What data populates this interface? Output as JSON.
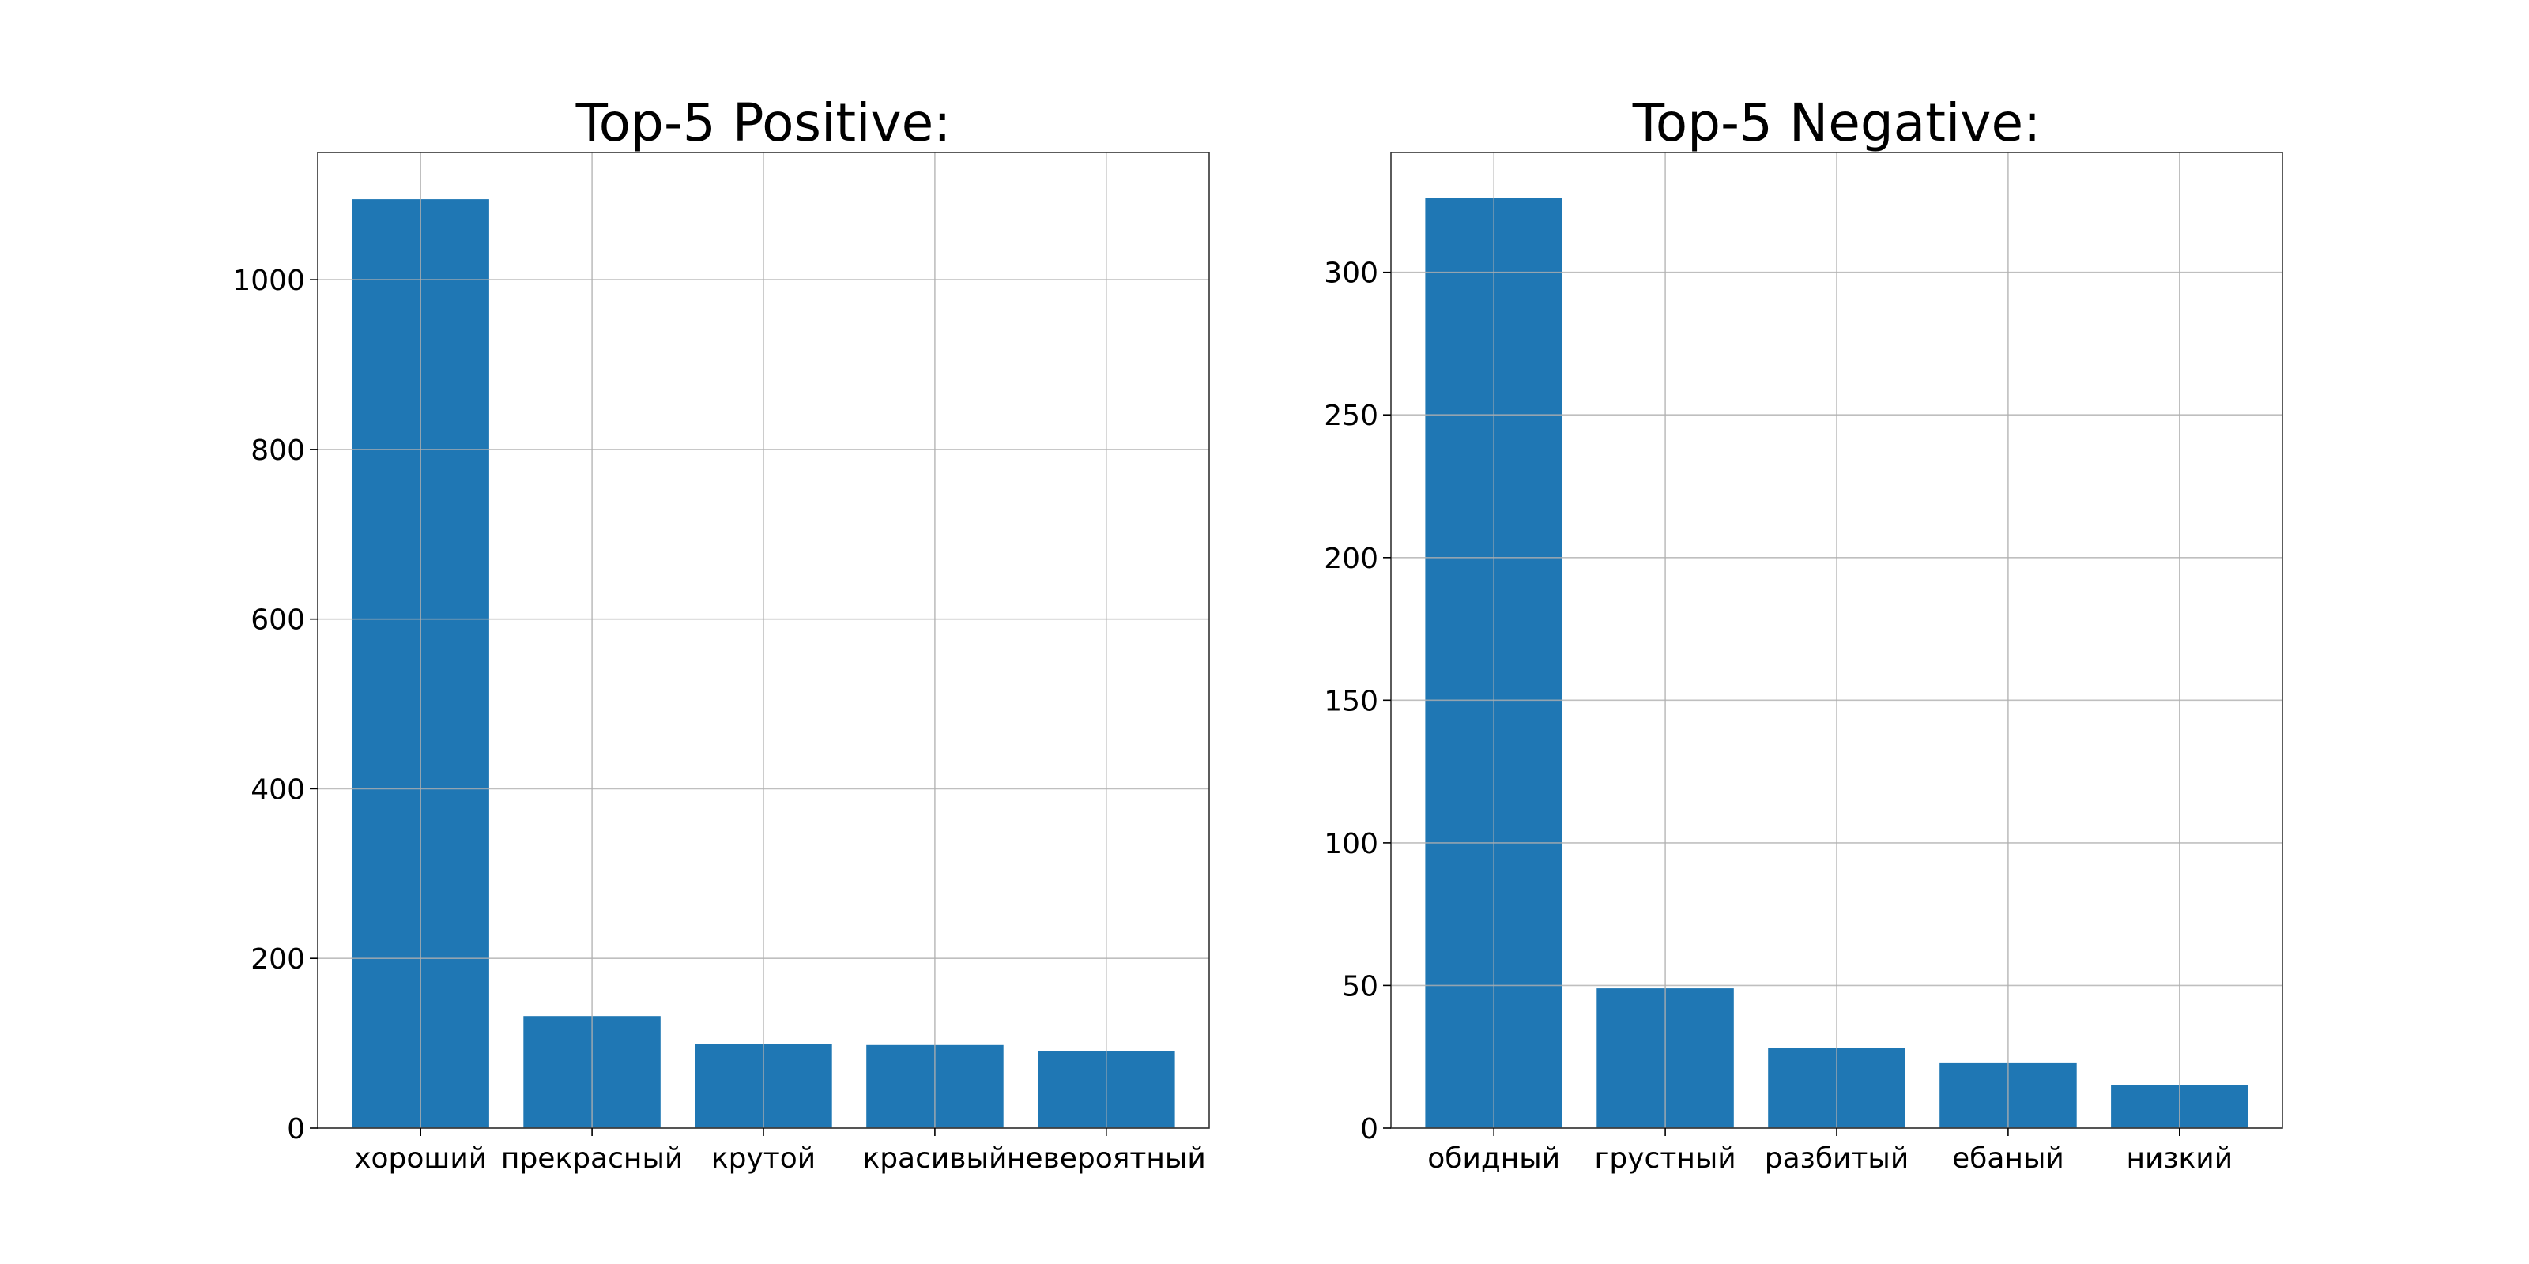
{
  "chart_data": [
    {
      "type": "bar",
      "title": "Top-5 Positive:",
      "xlabel": "",
      "ylabel": "",
      "categories": [
        "хороший",
        "прекрасный",
        "крутой",
        "красивый",
        "невероятный"
      ],
      "values": [
        1095,
        132,
        99,
        98,
        91
      ],
      "ylim": [
        0,
        1150
      ],
      "yticks": [
        0,
        200,
        400,
        600,
        800,
        1000
      ],
      "grid": true,
      "bar_color": "#1f77b4"
    },
    {
      "type": "bar",
      "title": "Top-5 Negative:",
      "xlabel": "",
      "ylabel": "",
      "categories": [
        "обидный",
        "грустный",
        "разбитый",
        "ебаный",
        "низкий"
      ],
      "values": [
        326,
        49,
        28,
        23,
        15
      ],
      "ylim": [
        0,
        342
      ],
      "yticks": [
        0,
        50,
        100,
        150,
        200,
        250,
        300
      ],
      "grid": true,
      "bar_color": "#1f77b4"
    }
  ]
}
